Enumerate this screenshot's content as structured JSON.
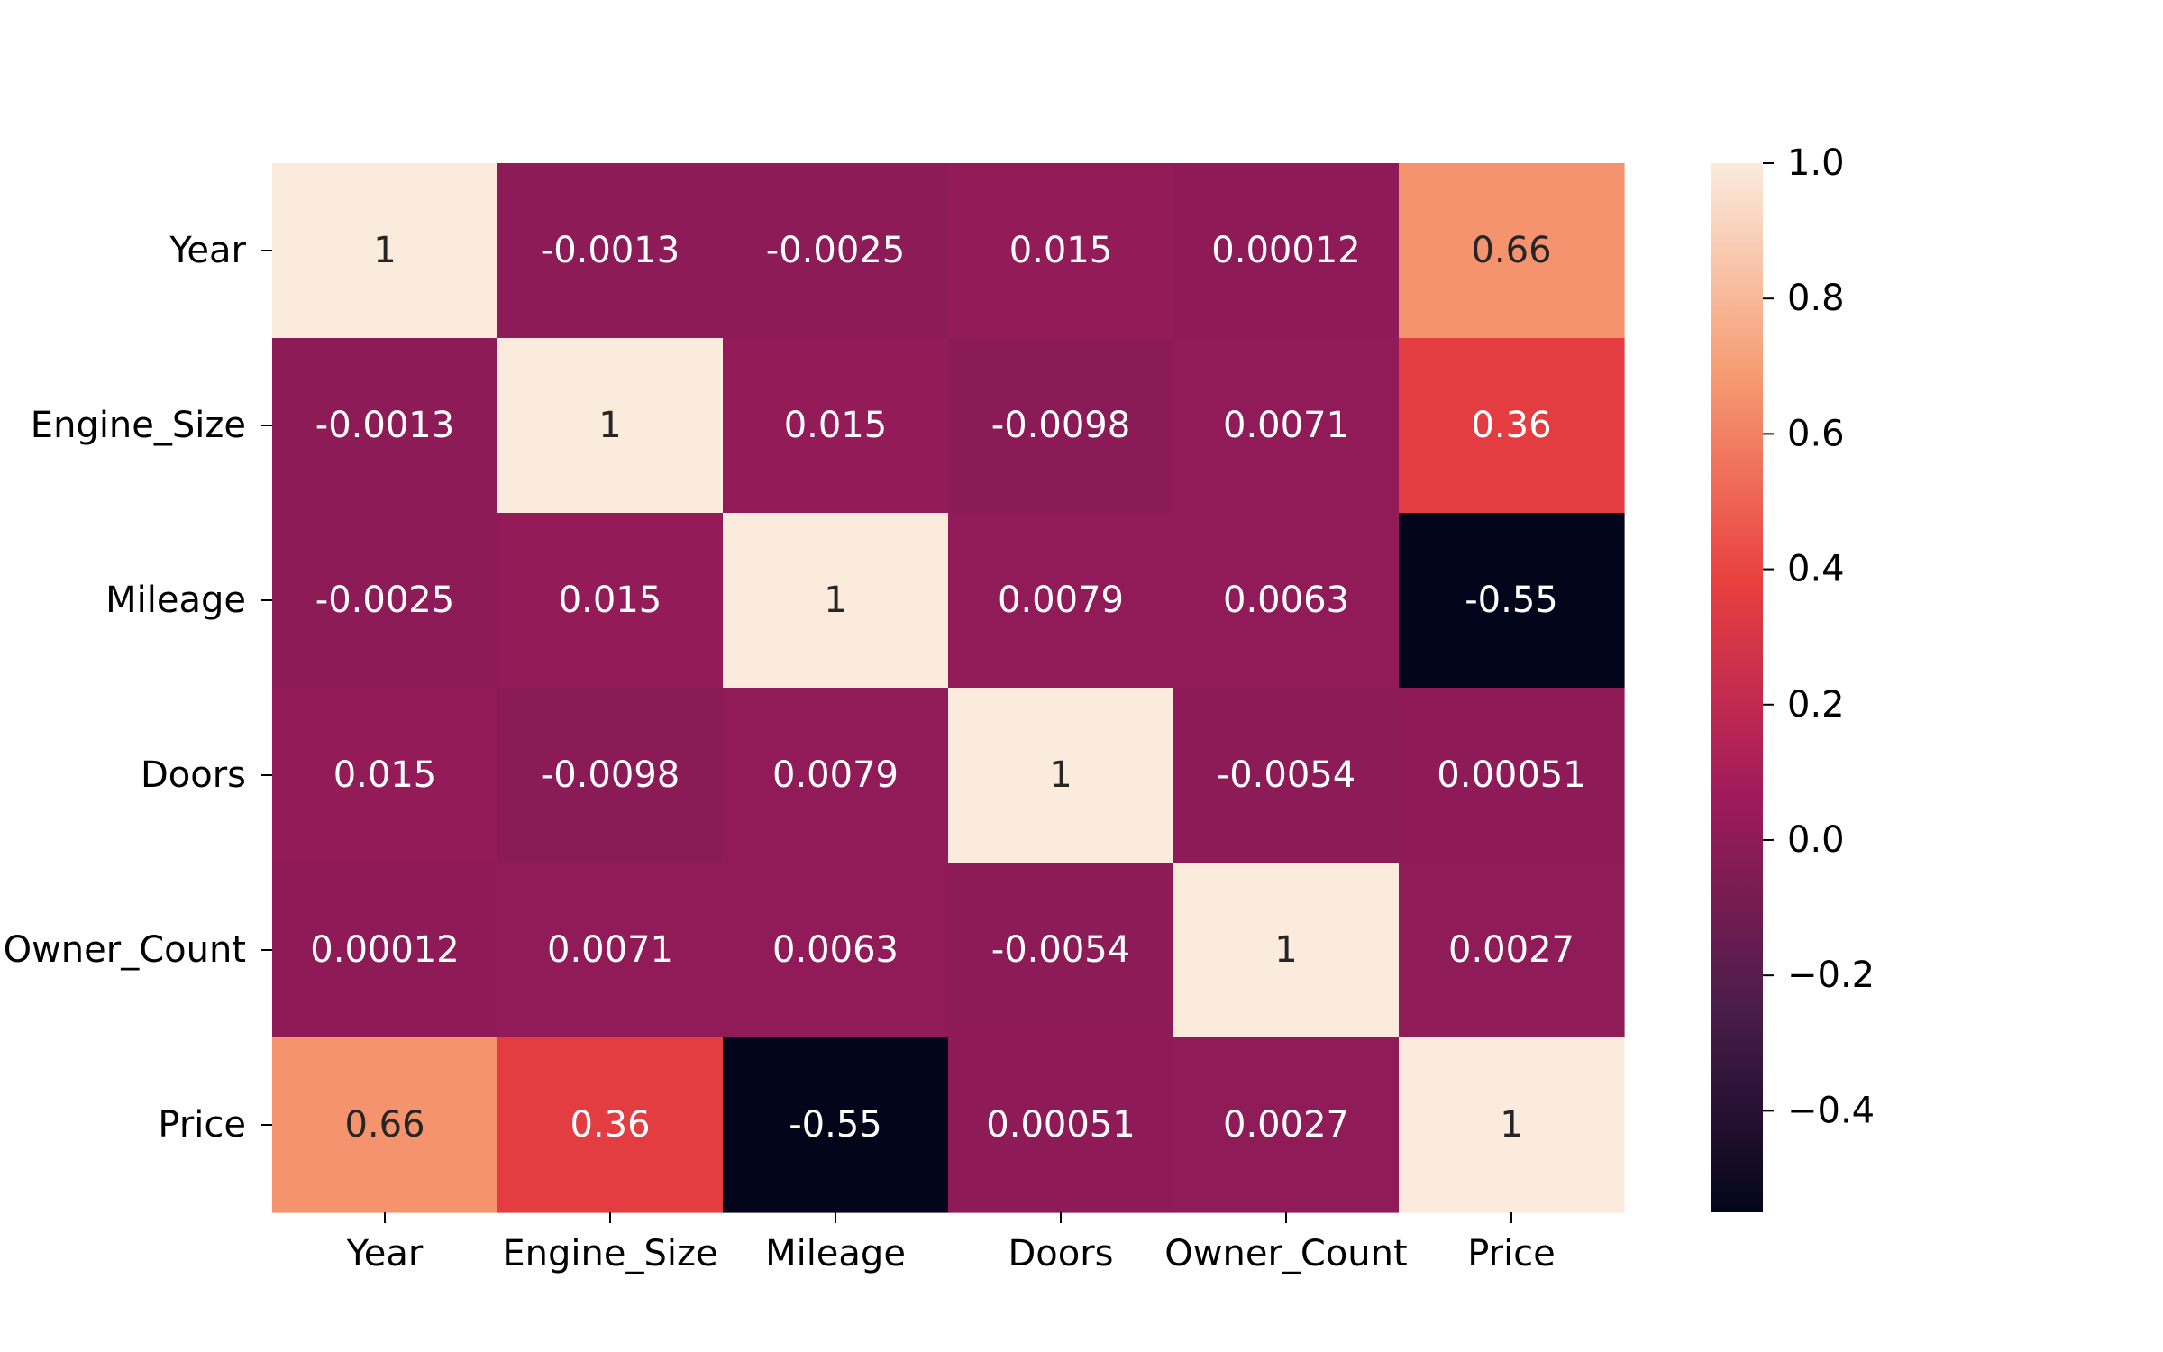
{
  "chart_data": {
    "type": "heatmap",
    "title": "",
    "xlabel": "",
    "ylabel": "",
    "rows": [
      "Year",
      "Engine_Size",
      "Mileage",
      "Doors",
      "Owner_Count",
      "Price"
    ],
    "columns": [
      "Year",
      "Engine_Size",
      "Mileage",
      "Doors",
      "Owner_Count",
      "Price"
    ],
    "values": [
      [
        1,
        -0.0013,
        -0.0025,
        0.015,
        0.00012,
        0.66
      ],
      [
        -0.0013,
        1,
        0.015,
        -0.0098,
        0.0071,
        0.36
      ],
      [
        -0.0025,
        0.015,
        1,
        0.0079,
        0.0063,
        -0.55
      ],
      [
        0.015,
        -0.0098,
        0.0079,
        1,
        -0.0054,
        0.00051
      ],
      [
        0.00012,
        0.0071,
        0.0063,
        -0.0054,
        1,
        0.0027
      ],
      [
        0.66,
        0.36,
        -0.55,
        0.00051,
        0.0027,
        1
      ]
    ],
    "annotations": [
      [
        "1",
        "-0.0013",
        "-0.0025",
        "0.015",
        "0.00012",
        "0.66"
      ],
      [
        "-0.0013",
        "1",
        "0.015",
        "-0.0098",
        "0.0071",
        "0.36"
      ],
      [
        "-0.0025",
        "0.015",
        "1",
        "0.0079",
        "0.0063",
        "-0.55"
      ],
      [
        "0.015",
        "-0.0098",
        "0.0079",
        "1",
        "-0.0054",
        "0.00051"
      ],
      [
        "0.00012",
        "0.0071",
        "0.0063",
        "-0.0054",
        "1",
        "0.0027"
      ],
      [
        "0.66",
        "0.36",
        "-0.55",
        "0.00051",
        "0.0027",
        "1"
      ]
    ],
    "colorbar": {
      "vmin": -0.55,
      "vmax": 1.0,
      "ticks": [
        1.0,
        0.8,
        0.6,
        0.4,
        0.2,
        0.0,
        -0.2,
        -0.4
      ],
      "tick_labels": [
        "1.0",
        "0.8",
        "0.6",
        "0.4",
        "0.2",
        "0.0",
        "−0.2",
        "−0.4"
      ],
      "colormap": "rocket",
      "stops": [
        "#03051a",
        "#4c1d4b",
        "#a11a5b",
        "#e83f3f",
        "#f69c73",
        "#faebdd"
      ]
    }
  }
}
